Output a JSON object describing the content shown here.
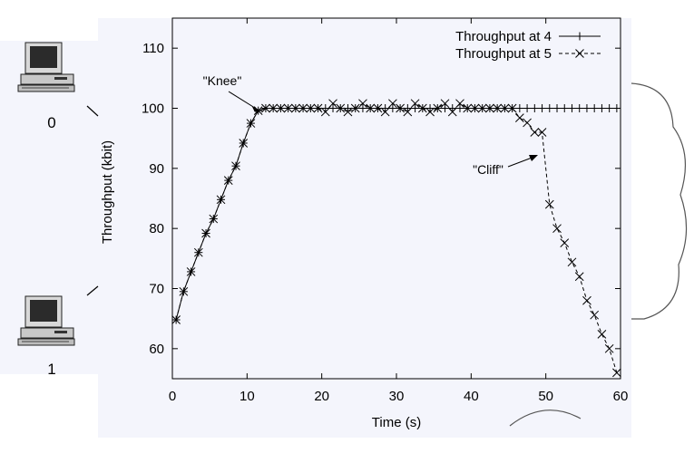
{
  "nodes": [
    {
      "id": "computer-0",
      "label": "0"
    },
    {
      "id": "computer-1",
      "label": "1"
    }
  ],
  "colors": {
    "background": "#f4f5fc",
    "ink": "#000000",
    "cloud_outline": "#555555"
  },
  "chart_data": {
    "type": "line",
    "title": "",
    "xlabel": "Time (s)",
    "ylabel": "Throughput (kbit)",
    "xlim": [
      0,
      60
    ],
    "ylim": [
      55,
      115
    ],
    "xticks": [
      0,
      10,
      20,
      30,
      40,
      50,
      60
    ],
    "xtick_labels": [
      "0",
      "10",
      "20",
      "30",
      "40",
      "50",
      "60"
    ],
    "yticks": [
      60,
      70,
      80,
      90,
      100,
      110
    ],
    "ytick_labels": [
      "60",
      "70",
      "80",
      "90",
      "100",
      "110"
    ],
    "grid": false,
    "legend": "top-right",
    "series": [
      {
        "name": "Throughput at 4",
        "marker": "plus",
        "dash": "solid",
        "x": [
          0.5,
          1.5,
          2.5,
          3.5,
          4.5,
          5.5,
          6.5,
          7.5,
          8.5,
          9.5,
          10.5,
          11.5,
          12.5,
          13.5,
          14.5,
          15.5,
          16.5,
          17.5,
          18.5,
          19.5,
          20.5,
          21.5,
          22.5,
          23.5,
          24.5,
          25.5,
          26.5,
          27.5,
          28.5,
          29.5,
          30.5,
          31.5,
          32.5,
          33.5,
          34.5,
          35.5,
          36.5,
          37.5,
          38.5,
          39.5,
          40.5,
          41.5,
          42.5,
          43.5,
          44.5,
          45.5,
          46.5,
          47.5,
          48.5,
          49.5,
          50.5,
          51.5,
          52.5,
          53.5,
          54.5,
          55.5,
          56.5,
          57.5,
          58.5,
          59.5
        ],
        "y": [
          64.8,
          69.5,
          72.8,
          76,
          79.2,
          81.6,
          84.8,
          88,
          90.4,
          94.2,
          97.5,
          99.6,
          100,
          100,
          100,
          100,
          100,
          100,
          100,
          100,
          100,
          100,
          100,
          100,
          100,
          100,
          100,
          100,
          100,
          100,
          100,
          100,
          100,
          100,
          100,
          100,
          100,
          100,
          100,
          100,
          100,
          100,
          100,
          100,
          100,
          100,
          100,
          100,
          100,
          100,
          100,
          100,
          100,
          100,
          100,
          100,
          100,
          100,
          100,
          100
        ]
      },
      {
        "name": "Throughput at 5",
        "marker": "x",
        "dash": "dashed",
        "x": [
          0.5,
          1.5,
          2.5,
          3.5,
          4.5,
          5.5,
          6.5,
          7.5,
          8.5,
          9.5,
          10.5,
          11.5,
          12.5,
          13.5,
          14.5,
          15.5,
          16.5,
          17.5,
          18.5,
          19.5,
          20.5,
          21.5,
          22.5,
          23.5,
          24.5,
          25.5,
          26.5,
          27.5,
          28.5,
          29.5,
          30.5,
          31.5,
          32.5,
          33.5,
          34.5,
          35.5,
          36.5,
          37.5,
          38.5,
          39.5,
          40.5,
          41.5,
          42.5,
          43.5,
          44.5,
          45.5,
          46.5,
          47.5,
          48.5,
          49.5,
          50.5,
          51.5,
          52.5,
          53.5,
          54.5,
          55.5,
          56.5,
          57.5,
          58.5,
          59.5
        ],
        "y": [
          64.8,
          69.5,
          72.8,
          76,
          79.2,
          81.6,
          84.8,
          88,
          90.4,
          94.2,
          97.5,
          99.6,
          100,
          100,
          100,
          100,
          100,
          100,
          100,
          100,
          99.4,
          100.8,
          100,
          99.4,
          100,
          100.8,
          100,
          100,
          99.4,
          100.8,
          100,
          99.4,
          100.8,
          100,
          99.4,
          100,
          100.8,
          99.4,
          100.8,
          100,
          100,
          100,
          100,
          100,
          100,
          100,
          98.4,
          97.6,
          96,
          96,
          84,
          80,
          77.6,
          74.4,
          72,
          68,
          65.6,
          62.4,
          60,
          56
        ]
      }
    ],
    "annotations": [
      {
        "text": "\"Knee\"",
        "x": 12,
        "y": 100
      },
      {
        "text": "\"Cliff\"",
        "x": 49.5,
        "y": 95
      }
    ]
  }
}
